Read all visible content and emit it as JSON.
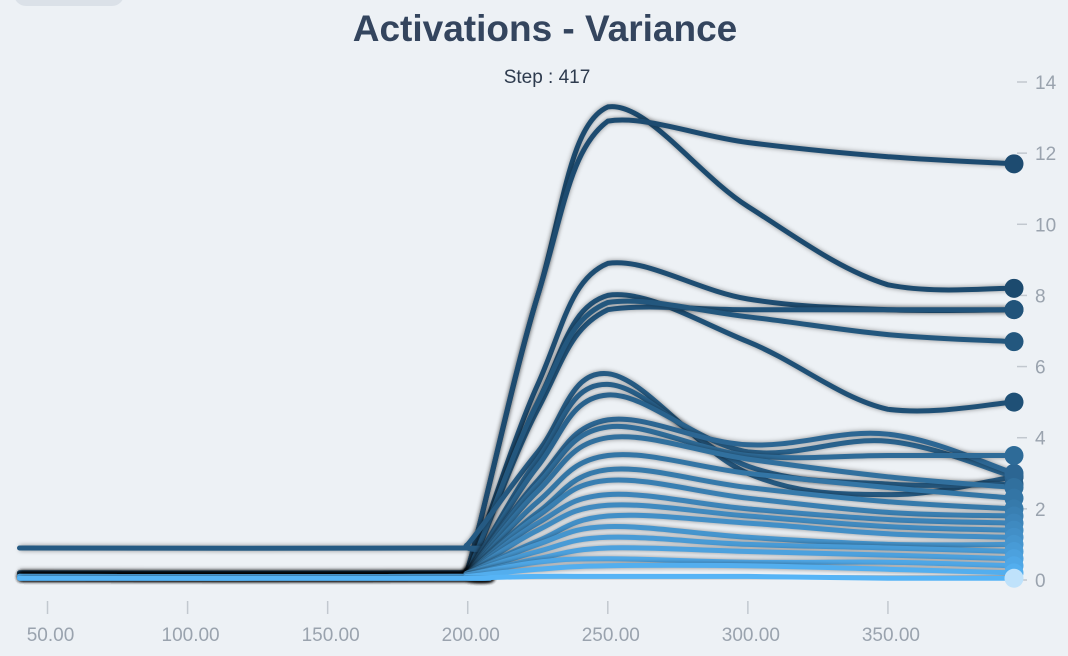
{
  "chart_data": {
    "type": "line",
    "title": "Activations - Variance",
    "subtitle": "Step : 417",
    "xlim": [
      40,
      395
    ],
    "ylim": [
      0,
      14
    ],
    "x_ticks": [
      50,
      100,
      150,
      200,
      250,
      300,
      350
    ],
    "x_tick_labels": [
      "50.00",
      "100.00",
      "150.00",
      "200.00",
      "250.00",
      "300.00",
      "350.00"
    ],
    "y_ticks": [
      0,
      2,
      4,
      6,
      8,
      10,
      12,
      14
    ],
    "y_axis_position": "right",
    "legend": "none",
    "colors": {
      "dark": "#1c4a6e",
      "light": "#56b4f6"
    },
    "x": [
      40,
      195,
      200,
      225,
      250,
      300,
      350,
      395
    ],
    "series": [
      {
        "values": [
          0.2,
          0.2,
          0.3,
          8.0,
          13.3,
          10.5,
          8.3,
          8.2
        ]
      },
      {
        "values": [
          0.2,
          0.2,
          0.3,
          8.0,
          12.9,
          12.3,
          11.9,
          11.7
        ]
      },
      {
        "values": [
          0.1,
          0.1,
          0.2,
          5.5,
          8.9,
          7.9,
          7.6,
          7.6
        ]
      },
      {
        "values": [
          0.1,
          0.1,
          0.2,
          5.0,
          8.0,
          6.7,
          4.8,
          5.0
        ]
      },
      {
        "values": [
          0.1,
          0.1,
          0.2,
          4.8,
          7.6,
          7.6,
          7.6,
          7.6
        ]
      },
      {
        "values": [
          0.1,
          0.1,
          0.2,
          5.0,
          7.8,
          7.4,
          6.9,
          6.7
        ]
      },
      {
        "values": [
          0.9,
          0.9,
          1.0,
          3.6,
          5.8,
          3.0,
          2.4,
          2.9
        ]
      },
      {
        "values": [
          0.1,
          0.1,
          0.2,
          3.4,
          5.5,
          3.2,
          2.7,
          2.7
        ]
      },
      {
        "values": [
          0.1,
          0.1,
          0.2,
          3.2,
          5.2,
          3.6,
          3.9,
          2.9
        ]
      },
      {
        "values": [
          0.1,
          0.1,
          0.2,
          2.8,
          4.5,
          3.8,
          4.1,
          3.0
        ]
      },
      {
        "values": [
          0.1,
          0.1,
          0.2,
          2.7,
          4.3,
          3.5,
          3.5,
          3.5
        ]
      },
      {
        "values": [
          0.1,
          0.1,
          0.2,
          2.5,
          4.0,
          3.4,
          2.9,
          2.6
        ]
      },
      {
        "values": [
          0.1,
          0.1,
          0.2,
          2.2,
          3.5,
          3.0,
          2.6,
          2.3
        ]
      },
      {
        "values": [
          0.1,
          0.1,
          0.2,
          1.9,
          3.1,
          2.6,
          2.2,
          2.0
        ]
      },
      {
        "values": [
          0.1,
          0.1,
          0.2,
          1.8,
          2.8,
          2.3,
          1.9,
          1.8
        ]
      },
      {
        "values": [
          0.1,
          0.1,
          0.2,
          1.6,
          2.4,
          2.0,
          1.7,
          1.6
        ]
      },
      {
        "values": [
          0.1,
          0.1,
          0.2,
          1.4,
          2.1,
          1.8,
          1.5,
          1.4
        ]
      },
      {
        "values": [
          0.1,
          0.1,
          0.2,
          1.1,
          1.8,
          1.6,
          1.3,
          1.2
        ]
      },
      {
        "values": [
          0.1,
          0.1,
          0.2,
          1.0,
          1.5,
          1.2,
          1.0,
          1.0
        ]
      },
      {
        "values": [
          0.1,
          0.1,
          0.2,
          0.8,
          1.2,
          1.0,
          0.9,
          0.8
        ]
      },
      {
        "values": [
          0.1,
          0.1,
          0.15,
          0.6,
          0.9,
          0.8,
          0.7,
          0.6
        ]
      },
      {
        "values": [
          0.1,
          0.1,
          0.15,
          0.5,
          0.6,
          0.5,
          0.5,
          0.4
        ]
      },
      {
        "values": [
          0.05,
          0.05,
          0.1,
          0.3,
          0.4,
          0.4,
          0.3,
          0.2
        ]
      },
      {
        "values": [
          0.05,
          0.05,
          0.05,
          0.1,
          0.1,
          0.1,
          0.05,
          0.05
        ]
      }
    ]
  }
}
